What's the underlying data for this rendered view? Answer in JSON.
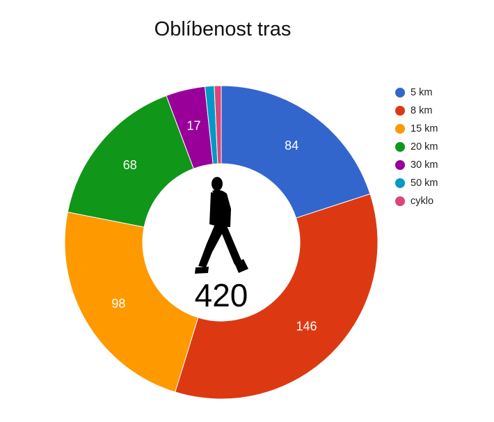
{
  "chart_data": {
    "type": "pie",
    "title": "Oblíbenost tras",
    "center_value": "420",
    "legend_position": "right",
    "slices": [
      {
        "label": "5 km",
        "value": 84,
        "color": "#3366cc"
      },
      {
        "label": "8 km",
        "value": 146,
        "color": "#dc3912"
      },
      {
        "label": "15 km",
        "value": 98,
        "color": "#ff9900"
      },
      {
        "label": "20 km",
        "value": 68,
        "color": "#109618"
      },
      {
        "label": "30 km",
        "value": 17,
        "color": "#990099"
      },
      {
        "label": "50 km",
        "value": 4,
        "color": "#0099c6"
      },
      {
        "label": "cyklo",
        "value": 3,
        "color": "#dd4477"
      }
    ],
    "center_icon": "walking-person-icon"
  }
}
